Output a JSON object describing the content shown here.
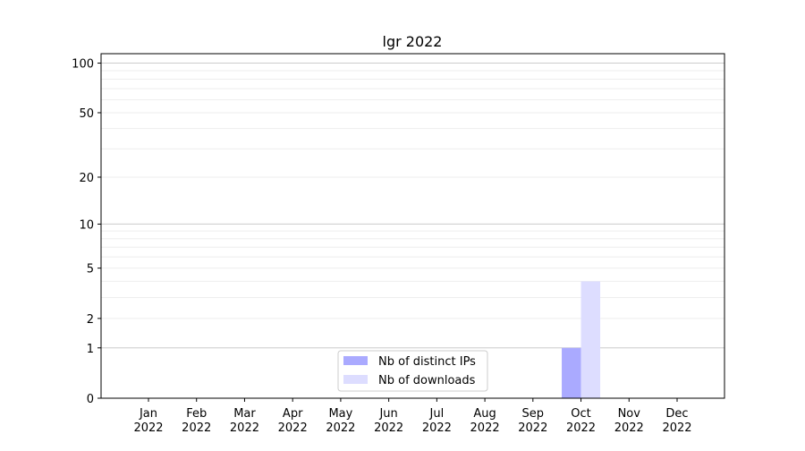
{
  "chart_data": {
    "type": "bar",
    "title": "lgr 2022",
    "xlabel": "",
    "ylabel": "",
    "yscale": "log(1+y)",
    "ylim": [
      0,
      114
    ],
    "yticks": [
      0,
      1,
      2,
      5,
      10,
      20,
      50,
      100
    ],
    "grid": true,
    "legend_position": "bottom-center",
    "categories": [
      "Jan\n2022",
      "Feb\n2022",
      "Mar\n2022",
      "Apr\n2022",
      "May\n2022",
      "Jun\n2022",
      "Jul\n2022",
      "Aug\n2022",
      "Sep\n2022",
      "Oct\n2022",
      "Nov\n2022",
      "Dec\n2022"
    ],
    "series": [
      {
        "name": "Nb of distinct IPs",
        "color": "#aaaaff",
        "values": [
          0,
          0,
          0,
          0,
          0,
          0,
          0,
          0,
          0,
          1,
          0,
          0
        ]
      },
      {
        "name": "Nb of downloads",
        "color": "#ddddff",
        "values": [
          0,
          0,
          0,
          0,
          0,
          0,
          0,
          0,
          0,
          4,
          0,
          0
        ]
      }
    ]
  }
}
